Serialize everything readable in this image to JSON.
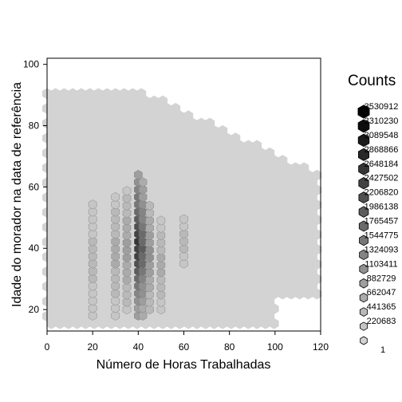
{
  "chart_data": {
    "type": "heatmap",
    "subtype": "hexbin",
    "xlabel": "Número de Horas Trabalhadas",
    "ylabel": "Idade do morador na data de referência",
    "xlim": [
      0,
      120
    ],
    "ylim": [
      13,
      102
    ],
    "x_ticks": [
      "0",
      "20",
      "40",
      "60",
      "80",
      "100",
      "120"
    ],
    "y_ticks": [
      "20",
      "40",
      "60",
      "80",
      "100"
    ],
    "grid": false,
    "legend_position": "right",
    "legend_title": "Counts",
    "legend_counts": [
      "3530912",
      "3310230",
      "3089548",
      "2868866",
      "2648184",
      "2427502",
      "2206820",
      "1986138",
      "1765457",
      "1544775",
      "1324093",
      "1103411",
      "882729",
      "662047",
      "441365",
      "220683",
      "1"
    ],
    "colors": {
      "low": "#d3d3d3",
      "high": "#000000",
      "background": "#ffffff",
      "hex_stroke": "#000000"
    },
    "hex_density": {
      "description": "Background region of low counts covering most of the plot; high-count hexes concentrated at 20, 30-50 hours and ages 20-65",
      "dense_columns": [
        {
          "x": 20,
          "y_range": [
            18,
            55
          ],
          "level": 2
        },
        {
          "x": 30,
          "y_range": [
            18,
            58
          ],
          "level": 3
        },
        {
          "x": 35,
          "y_range": [
            20,
            60
          ],
          "level": 4
        },
        {
          "x": 40,
          "y_range": [
            18,
            65
          ],
          "level": 12
        },
        {
          "x": 42,
          "y_range": [
            18,
            62
          ],
          "level": 9
        },
        {
          "x": 45,
          "y_range": [
            20,
            55
          ],
          "level": 5
        },
        {
          "x": 50,
          "y_range": [
            20,
            50
          ],
          "level": 3
        },
        {
          "x": 60,
          "y_range": [
            35,
            50
          ],
          "level": 2
        }
      ]
    }
  }
}
